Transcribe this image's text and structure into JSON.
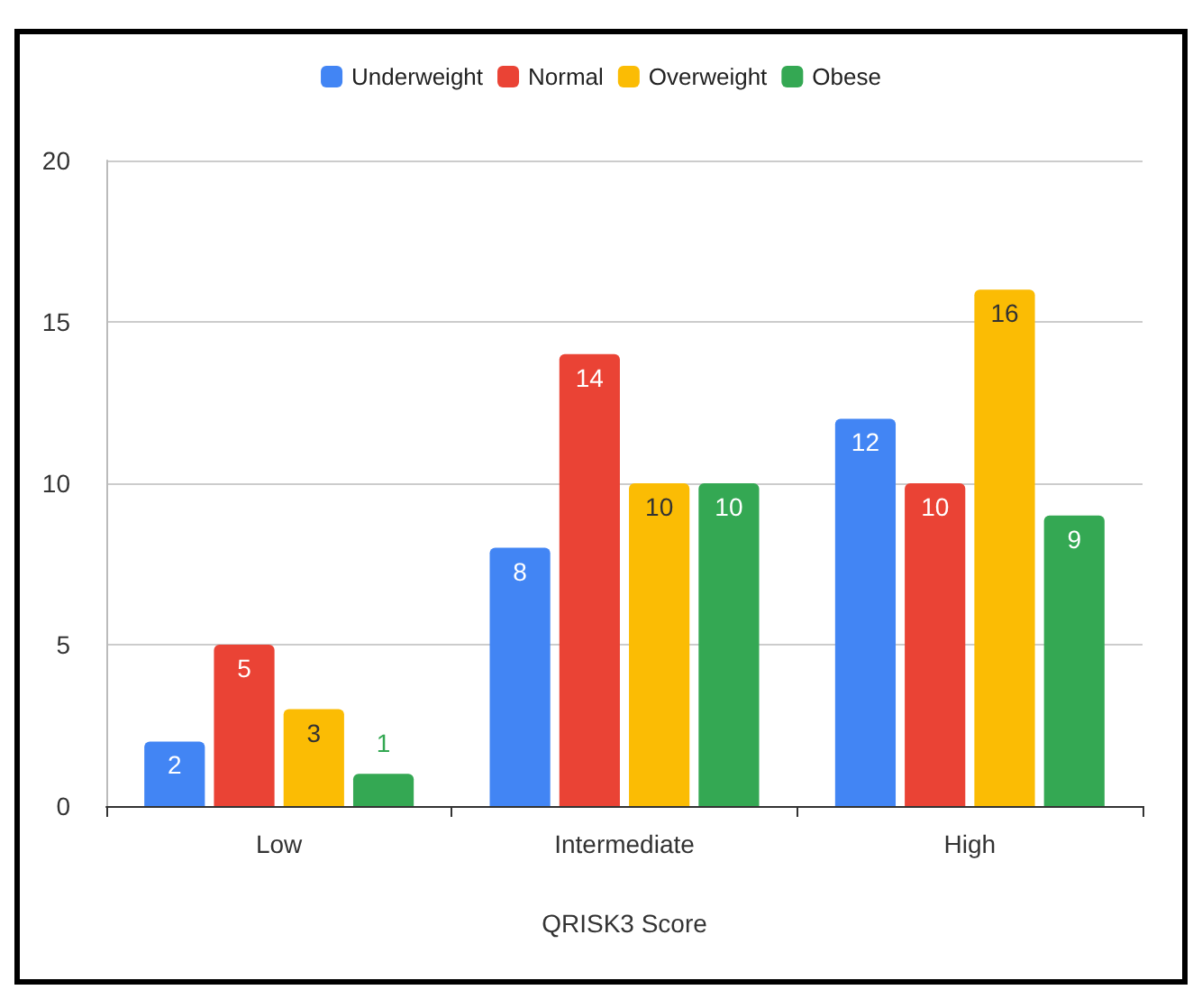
{
  "chart_data": {
    "type": "bar",
    "xlabel": "QRISK3 Score",
    "categories": [
      "Low",
      "Intermediate",
      "High"
    ],
    "series": [
      {
        "name": "Underweight",
        "color": "#4285f4",
        "values": [
          2,
          8,
          12
        ]
      },
      {
        "name": "Normal",
        "color": "#ea4335",
        "values": [
          5,
          14,
          10
        ]
      },
      {
        "name": "Overweight",
        "color": "#fbbc04",
        "values": [
          3,
          10,
          16
        ]
      },
      {
        "name": "Obese",
        "color": "#34a853",
        "values": [
          1,
          10,
          9
        ]
      }
    ],
    "ylim": [
      0,
      20
    ],
    "yticks": [
      0,
      5,
      10,
      15,
      20
    ],
    "grid": "y",
    "legend": "top",
    "data_labels": true
  }
}
